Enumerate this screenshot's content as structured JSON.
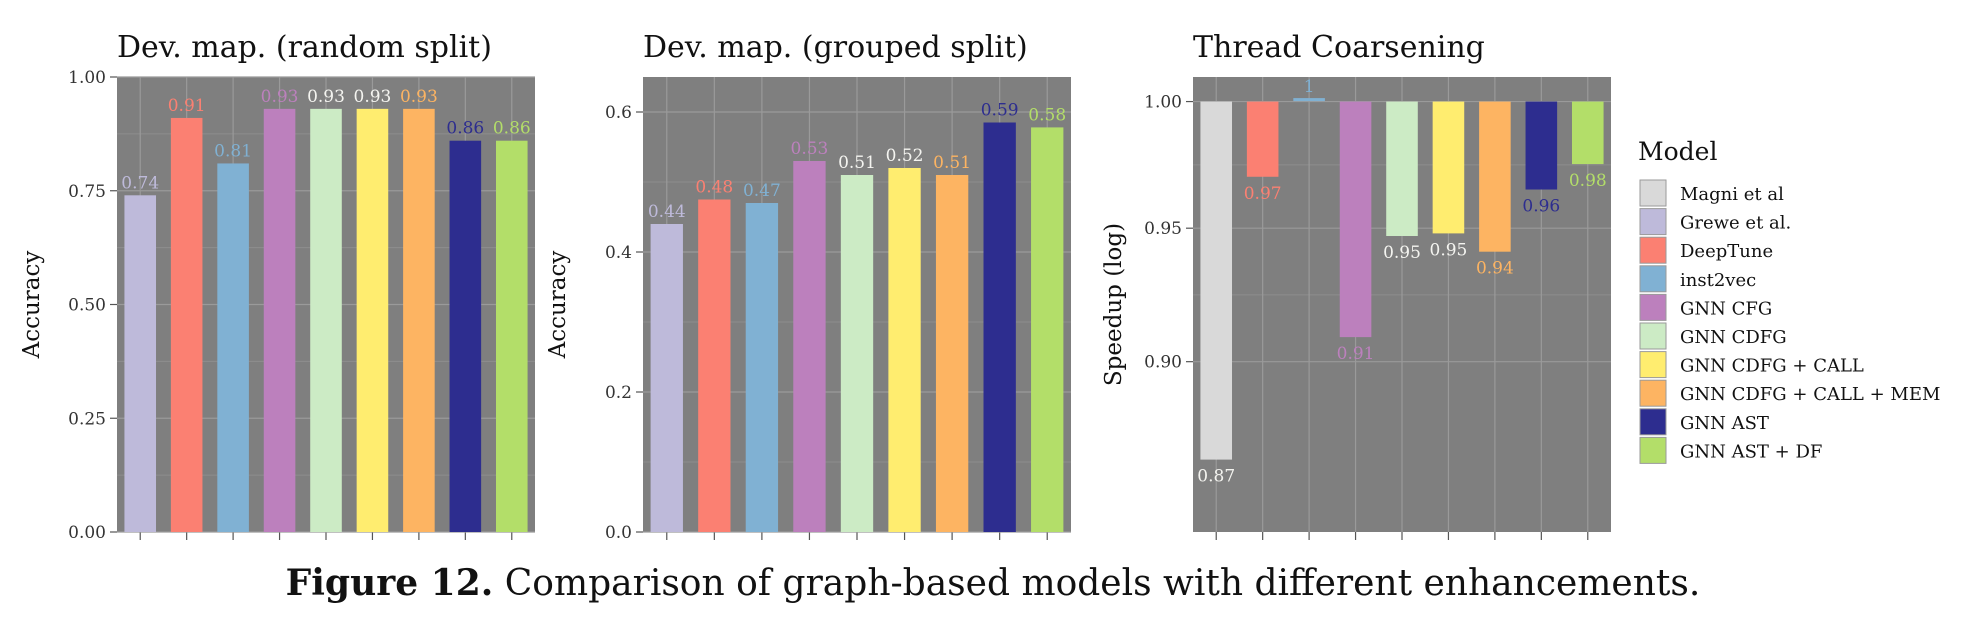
{
  "caption": {
    "label": "Figure 12.",
    "text": "Comparison of graph-based models with different enhancements."
  },
  "legend": {
    "title": "Model",
    "entries": [
      {
        "name": "Magni et al",
        "color": "#d9d9d9"
      },
      {
        "name": "Grewe et al.",
        "color": "#bebada"
      },
      {
        "name": "DeepTune",
        "color": "#fb8072"
      },
      {
        "name": "inst2vec",
        "color": "#80b1d3"
      },
      {
        "name": "GNN CFG",
        "color": "#bc80bd"
      },
      {
        "name": "GNN CDFG",
        "color": "#ccebc5"
      },
      {
        "name": "GNN CDFG + CALL",
        "color": "#ffed6f"
      },
      {
        "name": "GNN CDFG + CALL + MEM",
        "color": "#fdb462"
      },
      {
        "name": "GNN AST",
        "color": "#2d2d8f"
      },
      {
        "name": "GNN AST + DF",
        "color": "#b3de69"
      }
    ]
  },
  "chart_data": [
    {
      "type": "bar",
      "title": "Dev. map. (random split)",
      "xlabel": "",
      "ylabel": "Accuracy",
      "ylim": [
        0,
        1.0
      ],
      "yticks": [
        "0.00",
        "0.25",
        "0.50",
        "0.75",
        "1.00"
      ],
      "grid": true,
      "categories": [
        "Grewe et al.",
        "DeepTune",
        "inst2vec",
        "GNN CFG",
        "GNN CDFG",
        "GNN CDFG + CALL",
        "GNN CDFG + CALL + MEM",
        "GNN AST",
        "GNN AST + DF"
      ],
      "values": [
        0.74,
        0.91,
        0.81,
        0.93,
        0.93,
        0.93,
        0.93,
        0.86,
        0.86
      ],
      "labels": [
        "0.74",
        "0.91",
        "0.81",
        "0.93",
        "0.93",
        "0.93",
        "0.93",
        "0.86",
        "0.86"
      ]
    },
    {
      "type": "bar",
      "title": "Dev. map. (grouped split)",
      "xlabel": "",
      "ylabel": "Accuracy",
      "ylim": [
        0,
        0.65
      ],
      "yticks": [
        "0.0",
        "0.2",
        "0.4",
        "0.6"
      ],
      "grid": true,
      "categories": [
        "Grewe et al.",
        "DeepTune",
        "inst2vec",
        "GNN CFG",
        "GNN CDFG",
        "GNN CDFG + CALL",
        "GNN CDFG + CALL + MEM",
        "GNN AST",
        "GNN AST + DF"
      ],
      "values": [
        0.44,
        0.475,
        0.47,
        0.53,
        0.51,
        0.52,
        0.51,
        0.585,
        0.578
      ],
      "labels": [
        "0.44",
        "0.48",
        "0.47",
        "0.53",
        "0.51",
        "0.52",
        "0.51",
        "0.59",
        "0.58"
      ]
    },
    {
      "type": "bar",
      "title": "Thread Coarsening",
      "xlabel": "",
      "ylabel": "Speedup (log)",
      "yscale": "log",
      "baseline": 1.0,
      "ylim": [
        0.84,
        1.01
      ],
      "yticks": [
        "0.90",
        "0.95",
        "1.00"
      ],
      "grid": true,
      "categories": [
        "Magni et al",
        "DeepTune",
        "inst2vec",
        "GNN CFG",
        "GNN CDFG",
        "GNN CDFG + CALL",
        "GNN CDFG + CALL + MEM",
        "GNN AST",
        "GNN AST + DF"
      ],
      "values": [
        0.865,
        0.97,
        1.001,
        0.909,
        0.947,
        0.948,
        0.941,
        0.965,
        0.975
      ],
      "labels": [
        "0.87",
        "0.97",
        "1",
        "0.91",
        "0.95",
        "0.95",
        "0.94",
        "0.96",
        "0.98"
      ]
    }
  ]
}
